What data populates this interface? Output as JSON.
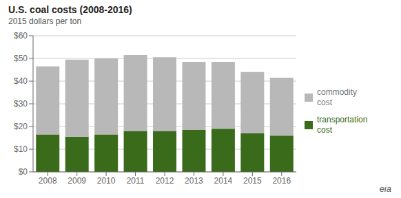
{
  "chart_data": {
    "type": "bar",
    "title": "U.S. coal costs (2008-2016)",
    "subtitle": "2015 dollars per ton",
    "categories": [
      "2008",
      "2009",
      "2010",
      "2011",
      "2012",
      "2013",
      "2014",
      "2015",
      "2016"
    ],
    "series": [
      {
        "name": "transportation\ncost",
        "color": "#3a6b1a",
        "values": [
          16.5,
          15.5,
          16.5,
          18.0,
          18.0,
          18.5,
          19.0,
          17.0,
          16.0
        ]
      },
      {
        "name": "commodity\ncost",
        "color": "#b8b8b8",
        "values": [
          30.0,
          34.0,
          33.5,
          33.5,
          32.5,
          30.0,
          29.5,
          27.0,
          25.5
        ]
      }
    ],
    "stacked": true,
    "ylim": [
      0,
      60
    ],
    "yticks": [
      {
        "value": 0,
        "label": "$0"
      },
      {
        "value": 10,
        "label": "$10"
      },
      {
        "value": 20,
        "label": "$20"
      },
      {
        "value": 30,
        "label": "$30"
      },
      {
        "value": 40,
        "label": "$40"
      },
      {
        "value": 50,
        "label": "$50"
      },
      {
        "value": 60,
        "label": "$60"
      }
    ],
    "grid": true,
    "legend": "right",
    "annotations": [
      "eia"
    ]
  }
}
